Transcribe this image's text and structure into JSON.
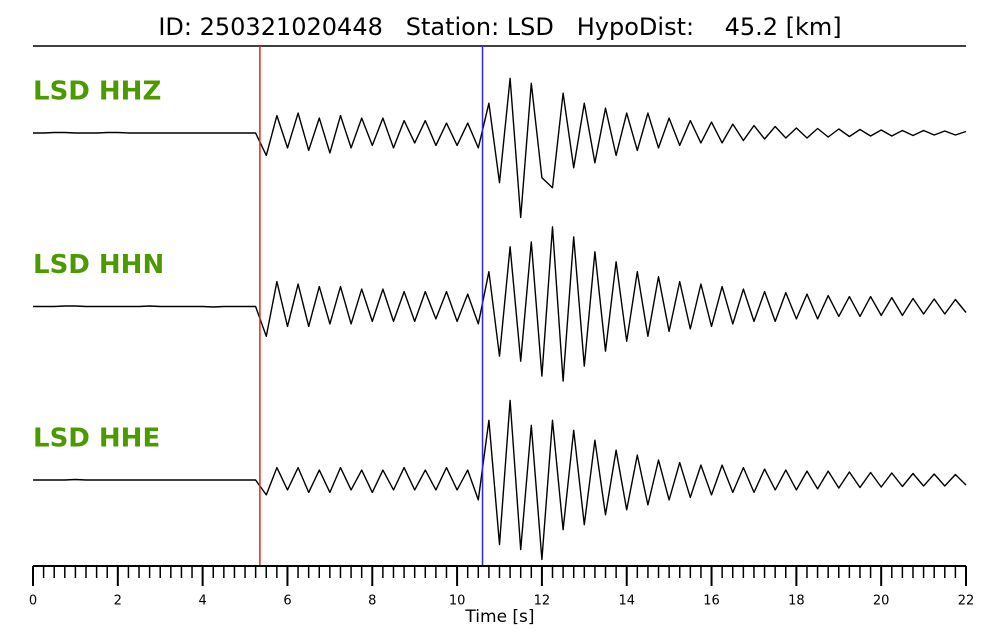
{
  "chart_data": {
    "type": "seismogram",
    "title": "ID: 250321020448   Station: LSD   HypoDist:    45.2 [km]",
    "xlabel": "Time [s]",
    "xlim": [
      0,
      22
    ],
    "ylim": [
      -1.75,
      1.75
    ],
    "xticks": [
      0,
      2,
      4,
      6,
      8,
      10,
      12,
      14,
      16,
      18,
      20,
      22
    ],
    "xminorticks": [
      0,
      0.25,
      0.5,
      0.75,
      1,
      1.25,
      1.5,
      1.75,
      2,
      2.25,
      2.5,
      2.75,
      3,
      3.25,
      3.5,
      3.75,
      4,
      4.25,
      4.5,
      4.75,
      5,
      5.25,
      5.5,
      5.75,
      6,
      6.25,
      6.5,
      6.75,
      7,
      7.25,
      7.5,
      7.75,
      8,
      8.25,
      8.5,
      8.75,
      9,
      9.25,
      9.5,
      9.75,
      10,
      10.25,
      10.5,
      10.75,
      11,
      11.25,
      11.5,
      11.75,
      12,
      12.25,
      12.5,
      12.75,
      13,
      13.25,
      13.5,
      13.75,
      14,
      14.25,
      14.5,
      14.75,
      15,
      15.25,
      15.5,
      15.75,
      16,
      16.25,
      16.5,
      16.75,
      17,
      17.25,
      17.5,
      17.75,
      18,
      18.25,
      18.5,
      18.75,
      19,
      19.25,
      19.5,
      19.75,
      20,
      20.25,
      20.5,
      20.75,
      21,
      21.25,
      21.5,
      21.75,
      22
    ],
    "x": [
      0,
      0.25,
      0.5,
      0.75,
      1,
      1.25,
      1.5,
      1.75,
      2,
      2.25,
      2.5,
      2.75,
      3,
      3.25,
      3.5,
      3.75,
      4,
      4.25,
      4.5,
      4.75,
      5,
      5.25,
      5.5,
      5.75,
      6,
      6.25,
      6.5,
      6.75,
      7,
      7.25,
      7.5,
      7.75,
      8,
      8.25,
      8.5,
      8.75,
      9,
      9.25,
      9.5,
      9.75,
      10,
      10.25,
      10.5,
      10.75,
      11,
      11.25,
      11.5,
      11.75,
      12,
      12.25,
      12.5,
      12.75,
      13,
      13.25,
      13.5,
      13.75,
      14,
      14.25,
      14.5,
      14.75,
      15,
      15.25,
      15.5,
      15.75,
      16,
      16.25,
      16.5,
      16.75,
      17,
      17.25,
      17.5,
      17.75,
      18,
      18.25,
      18.5,
      18.75,
      19,
      19.25,
      19.5,
      19.75,
      20,
      20.25,
      20.5,
      20.75,
      21,
      21.25,
      21.5,
      21.75,
      22
    ],
    "picks": [
      {
        "x": 5.35,
        "color": "#e8251f"
      },
      {
        "x": 10.6,
        "color": "#2a2ad8"
      }
    ],
    "label_color": "#4c9a00",
    "series": [
      {
        "name": "LSD HHZ",
        "color": "#000000",
        "values": [
          0,
          0,
          0.01,
          0.01,
          0,
          0,
          0,
          0.01,
          0.01,
          0,
          0,
          0,
          0,
          0,
          0,
          0,
          0,
          0,
          0,
          0,
          0,
          0,
          -0.45,
          0.35,
          -0.3,
          0.4,
          -0.35,
          0.3,
          -0.4,
          0.35,
          -0.3,
          0.3,
          -0.25,
          0.3,
          -0.3,
          0.25,
          -0.2,
          0.25,
          -0.25,
          0.2,
          -0.25,
          0.2,
          -0.3,
          0.6,
          -1.0,
          1.1,
          -1.7,
          1.0,
          -0.9,
          -1.1,
          0.8,
          -0.7,
          0.6,
          -0.6,
          0.5,
          -0.45,
          0.4,
          -0.35,
          0.4,
          -0.3,
          0.3,
          -0.25,
          0.25,
          -0.2,
          0.22,
          -0.2,
          0.18,
          -0.15,
          0.15,
          -0.12,
          0.13,
          -0.1,
          0.1,
          -0.1,
          0.09,
          -0.08,
          0.08,
          -0.07,
          0.07,
          -0.06,
          0.06,
          -0.06,
          0.05,
          -0.05,
          0.05,
          -0.04,
          0.04,
          -0.04,
          0.03
        ]
      },
      {
        "name": "LSD HHN",
        "color": "#000000",
        "values": [
          0,
          0,
          0,
          0.01,
          0.01,
          0,
          0,
          0,
          0,
          0,
          0,
          0.01,
          0,
          0,
          0,
          0,
          0,
          -0.01,
          0,
          0,
          0,
          0,
          -0.6,
          0.5,
          -0.4,
          0.45,
          -0.4,
          0.4,
          -0.35,
          0.4,
          -0.35,
          0.35,
          -0.3,
          0.35,
          -0.3,
          0.3,
          -0.3,
          0.3,
          -0.25,
          0.3,
          -0.3,
          0.25,
          -0.35,
          0.7,
          -1.0,
          1.2,
          -1.1,
          1.3,
          -1.4,
          1.6,
          -1.5,
          1.4,
          -1.2,
          1.1,
          -0.9,
          0.9,
          -0.7,
          0.7,
          -0.6,
          0.6,
          -0.5,
          0.5,
          -0.45,
          0.45,
          -0.4,
          0.4,
          -0.35,
          0.35,
          -0.3,
          0.3,
          -0.3,
          0.28,
          -0.25,
          0.25,
          -0.25,
          0.22,
          -0.2,
          0.2,
          -0.2,
          0.2,
          -0.18,
          0.18,
          -0.18,
          0.16,
          -0.15,
          0.15,
          -0.15,
          0.14,
          -0.12
        ]
      },
      {
        "name": "LSD HHE",
        "color": "#000000",
        "values": [
          0,
          0,
          0,
          0,
          0.01,
          0,
          0,
          0,
          0,
          0,
          0,
          0,
          0,
          0,
          0,
          0,
          0,
          0,
          0,
          0,
          0,
          0,
          -0.3,
          0.25,
          -0.2,
          0.25,
          -0.25,
          0.2,
          -0.25,
          0.25,
          -0.2,
          0.2,
          -0.25,
          0.2,
          -0.2,
          0.25,
          -0.2,
          0.2,
          -0.2,
          0.25,
          -0.2,
          0.2,
          -0.4,
          1.2,
          -1.3,
          1.6,
          -1.4,
          1.1,
          -1.6,
          1.2,
          -1.0,
          1.0,
          -0.9,
          0.8,
          -0.7,
          0.6,
          -0.6,
          0.5,
          -0.5,
          0.4,
          -0.4,
          0.35,
          -0.35,
          0.3,
          -0.3,
          0.3,
          -0.25,
          0.25,
          -0.25,
          0.22,
          -0.2,
          0.2,
          -0.2,
          0.18,
          -0.18,
          0.18,
          -0.16,
          0.16,
          -0.15,
          0.15,
          -0.14,
          0.14,
          -0.13,
          0.13,
          -0.12,
          0.12,
          -0.12,
          0.11,
          -0.1
        ]
      }
    ]
  }
}
